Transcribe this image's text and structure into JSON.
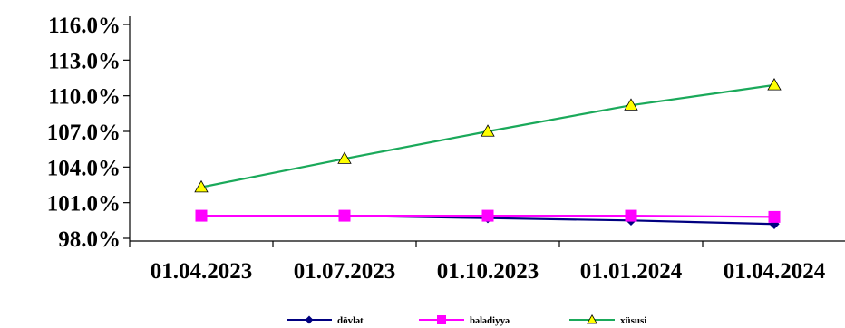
{
  "chart_data": {
    "type": "line",
    "title": "",
    "xlabel": "",
    "ylabel": "",
    "categories": [
      "01.04.2023",
      "01.07.2023",
      "01.10.2023",
      "01.01.2024",
      "01.04.2024"
    ],
    "y_ticks": [
      "98.0%",
      "101.0%",
      "104.0%",
      "107.0%",
      "110.0%",
      "113.0%",
      "116.0%"
    ],
    "y_tick_values": [
      98,
      101,
      104,
      107,
      110,
      113,
      116
    ],
    "ylim": [
      98,
      116
    ],
    "grid": false,
    "legend_position": "bottom",
    "series": [
      {
        "name": "dövlət",
        "color": "#000080",
        "marker": "diamond",
        "values": [
          99.9,
          99.9,
          99.7,
          99.5,
          99.2
        ]
      },
      {
        "name": "bələdiyyə",
        "color": "#ff00ff",
        "marker": "square",
        "values": [
          99.9,
          99.9,
          99.9,
          99.9,
          99.8
        ]
      },
      {
        "name": "xüsusi",
        "color": "#1aa95a",
        "marker": "triangle",
        "marker_fill": "#ffff00",
        "values": [
          102.3,
          104.7,
          107.0,
          109.2,
          110.9
        ]
      }
    ]
  }
}
